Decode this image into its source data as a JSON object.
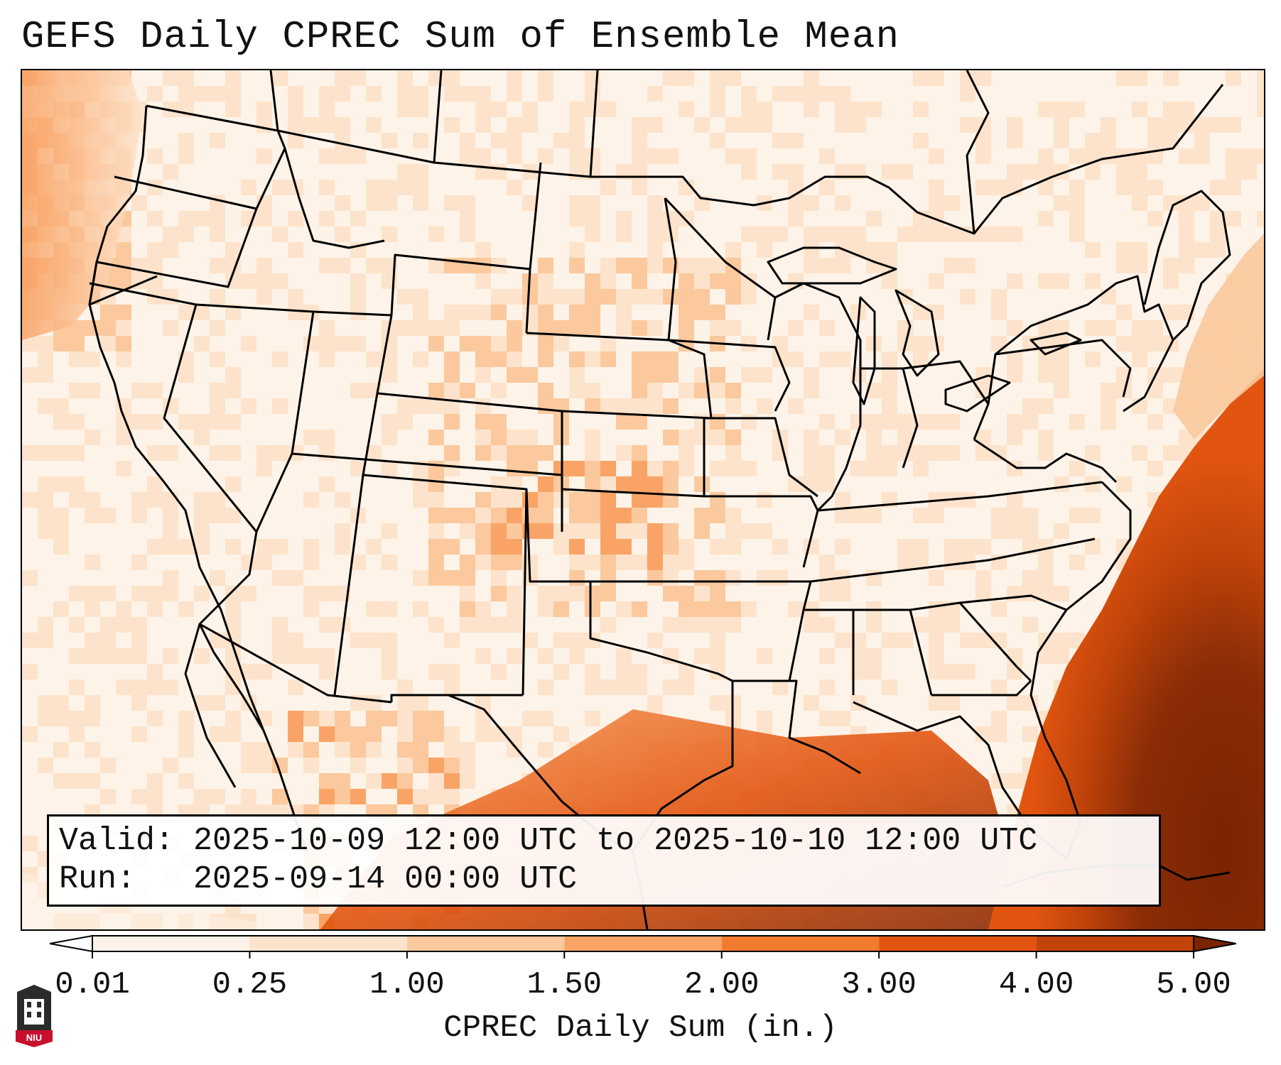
{
  "title": "GEFS Daily CPREC Sum of Ensemble Mean",
  "info": {
    "valid_label": "Valid:",
    "valid_value": "2025-10-09 12:00 UTC to 2025-10-10 12:00 UTC",
    "run_label": "Run:",
    "run_value": "2025-09-14 00:00 UTC"
  },
  "colorbar": {
    "label": "CPREC Daily Sum (in.)",
    "ticks": [
      "0.01",
      "0.25",
      "1.00",
      "1.50",
      "2.00",
      "3.00",
      "4.00",
      "5.00"
    ],
    "colors": [
      "#fef3e8",
      "#fde3cb",
      "#fbc99d",
      "#f9a466",
      "#f37b2e",
      "#e25510",
      "#c2440a",
      "#8a2c06"
    ],
    "under_color": "#ffffff",
    "over_color": "#7a2404"
  },
  "logo": {
    "text": "NIU",
    "colors": {
      "shield": "#2b2b2b",
      "banner": "#c8102e"
    },
    "icon": "niu-logo-icon"
  }
}
